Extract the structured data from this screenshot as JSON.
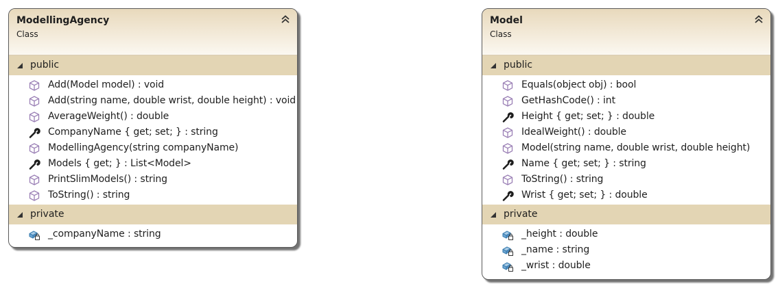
{
  "classes": [
    {
      "name": "ModellingAgency",
      "kind": "Class",
      "public_label": "public",
      "private_label": "private",
      "public_members": [
        {
          "icon": "method-icon",
          "text": "Add(Model model) : void"
        },
        {
          "icon": "method-icon",
          "text": "Add(string name, double wrist, double height) : void"
        },
        {
          "icon": "method-icon",
          "text": "AverageWeight() : double"
        },
        {
          "icon": "property-icon",
          "text": "CompanyName { get; set; } : string"
        },
        {
          "icon": "method-icon",
          "text": "ModellingAgency(string companyName)"
        },
        {
          "icon": "property-icon",
          "text": "Models { get; } : List<Model>"
        },
        {
          "icon": "method-icon",
          "text": "PrintSlimModels() : string"
        },
        {
          "icon": "method-icon",
          "text": "ToString() : string"
        }
      ],
      "private_members": [
        {
          "icon": "private-field-icon",
          "text": "_companyName : string"
        }
      ]
    },
    {
      "name": "Model",
      "kind": "Class",
      "public_label": "public",
      "private_label": "private",
      "public_members": [
        {
          "icon": "method-icon",
          "text": "Equals(object obj) : bool"
        },
        {
          "icon": "method-icon",
          "text": "GetHashCode() : int"
        },
        {
          "icon": "property-icon",
          "text": "Height { get; set; } : double"
        },
        {
          "icon": "method-icon",
          "text": "IdealWeight() : double"
        },
        {
          "icon": "method-icon",
          "text": "Model(string name, double wrist, double height)"
        },
        {
          "icon": "property-icon",
          "text": "Name { get; set; } : string"
        },
        {
          "icon": "method-icon",
          "text": "ToString() : string"
        },
        {
          "icon": "property-icon",
          "text": "Wrist { get; set; } : double"
        }
      ],
      "private_members": [
        {
          "icon": "private-field-icon",
          "text": "_height : double"
        },
        {
          "icon": "private-field-icon",
          "text": "_name : string"
        },
        {
          "icon": "private-field-icon",
          "text": "_wrist : double"
        }
      ]
    }
  ],
  "colors": {
    "header_band": "#e3d5b4",
    "method_icon": "#9a7fb5",
    "property_icon": "#1e1e1e",
    "field_icon": "#3c7fb1"
  }
}
